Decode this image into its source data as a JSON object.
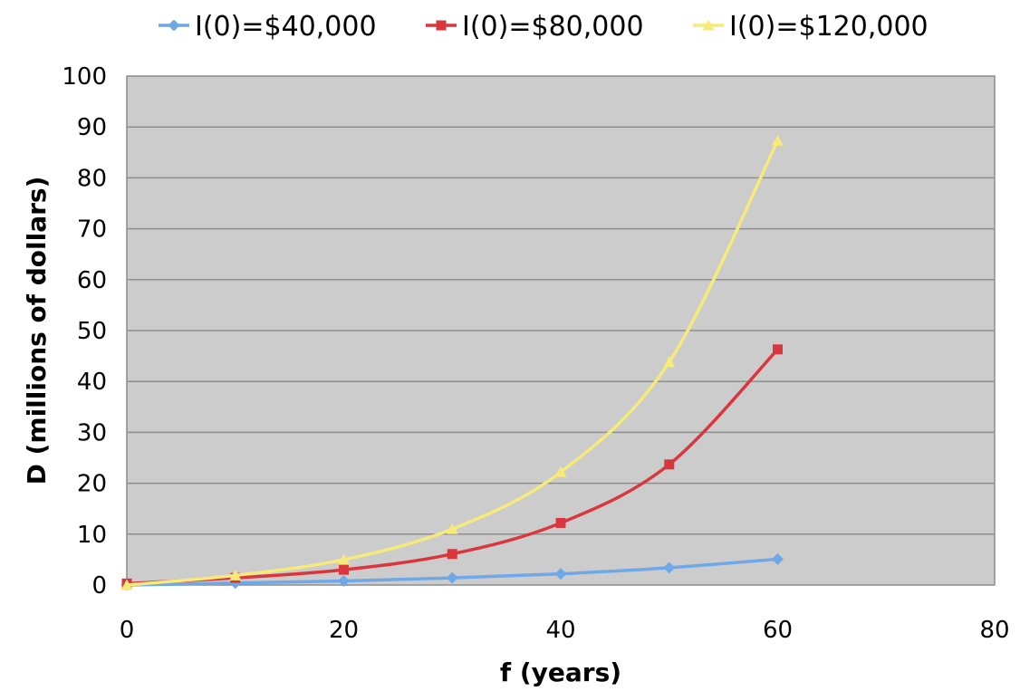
{
  "chart_data": {
    "type": "line",
    "title": "",
    "xlabel": "f (years)",
    "ylabel": "D (millions of dollars)",
    "xlim": [
      0,
      80
    ],
    "ylim": [
      0,
      100
    ],
    "x_ticks": [
      0,
      20,
      40,
      60,
      80
    ],
    "y_ticks": [
      0,
      10,
      20,
      30,
      40,
      50,
      60,
      70,
      80,
      90,
      100
    ],
    "grid": "horizontal",
    "legend_position": "top",
    "plot_background": "#cccccc",
    "x": [
      0,
      10,
      20,
      30,
      40,
      50,
      60
    ],
    "series": [
      {
        "name": "I(0)=$40,000",
        "color": "#6fa8e8",
        "marker": "diamond",
        "values": [
          0,
          0.4,
          0.8,
          1.4,
          2.2,
          3.4,
          5.1
        ]
      },
      {
        "name": "I(0)=$80,000",
        "color": "#d9363e",
        "marker": "square",
        "values": [
          0.3,
          1.4,
          3.0,
          6.1,
          12.2,
          23.7,
          46.3
        ]
      },
      {
        "name": "I(0)=$120,000",
        "color": "#f5ea7a",
        "marker": "triangle",
        "values": [
          0,
          1.9,
          5.0,
          11.0,
          22.2,
          43.8,
          87.3
        ]
      }
    ]
  }
}
